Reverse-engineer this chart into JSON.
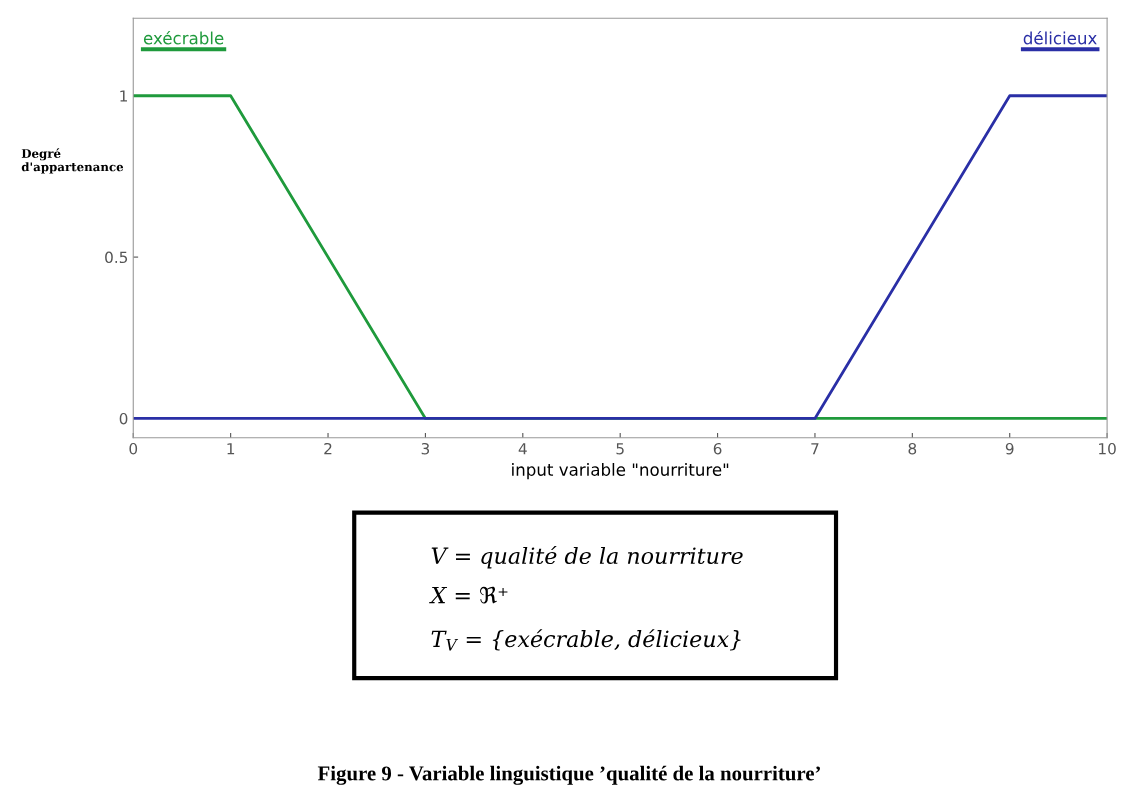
{
  "chart_data": {
    "type": "line",
    "xlabel": "input variable \"nourriture\"",
    "ylabel": "Degré\nd'appartenance",
    "x": [
      0,
      1,
      3,
      7,
      9,
      10
    ],
    "series": [
      {
        "name": "exécrable",
        "color": "#1f9a3c",
        "values": [
          1,
          1,
          0,
          0,
          0,
          0
        ]
      },
      {
        "name": "délicieux",
        "color": "#2a2fa6",
        "values": [
          0,
          0,
          0,
          0,
          1,
          1
        ]
      }
    ],
    "xlim": [
      0,
      10
    ],
    "xticks": [
      0,
      1,
      2,
      3,
      4,
      5,
      6,
      7,
      8,
      9,
      10
    ],
    "ylim": [
      -0.06,
      1.24
    ],
    "yticks": [
      0,
      0.5,
      1
    ],
    "grid": false,
    "legend": false,
    "marker": "none",
    "line_style": "solid",
    "annotations": [
      "V = qualité de la nourriture",
      "X = ℜ⁺",
      "T$_{V}$ = {exécrable, délicieux}",
      "Figure 9 - Variable linguistique ’qualité de la nourriture’"
    ]
  }
}
